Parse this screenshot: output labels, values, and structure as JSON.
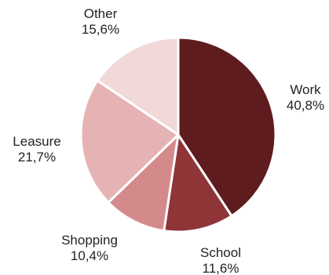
{
  "chart_data": {
    "type": "pie",
    "title": "",
    "start_angle_deg": 0,
    "direction": "clockwise",
    "slices": [
      {
        "label": "Work",
        "value": 40.8,
        "value_text": "40,8%",
        "color": "#5e1c1f"
      },
      {
        "label": "School",
        "value": 11.6,
        "value_text": "11,6%",
        "color": "#8f3437"
      },
      {
        "label": "Shopping",
        "value": 10.4,
        "value_text": "10,4%",
        "color": "#d48a8b"
      },
      {
        "label": "Leasure",
        "value": 21.7,
        "value_text": "21,7%",
        "color": "#e6b3b4"
      },
      {
        "label": "Other",
        "value": 15.6,
        "value_text": "15,6%",
        "color": "#f2d9d9"
      }
    ]
  }
}
